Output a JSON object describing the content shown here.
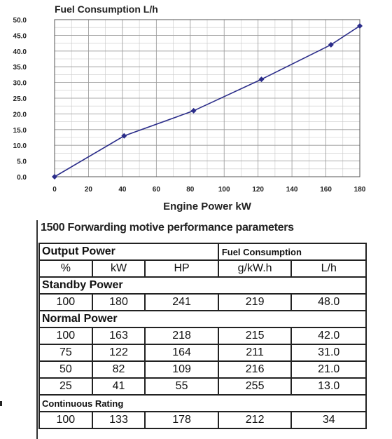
{
  "chart_data": {
    "type": "line",
    "title": "Fuel Consumption L/h",
    "xlabel": "Engine Power kW",
    "ylabel": "",
    "xlim": [
      0,
      180
    ],
    "ylim": [
      0,
      50
    ],
    "x_ticks": [
      0,
      20,
      40,
      60,
      80,
      100,
      120,
      140,
      160,
      180
    ],
    "x_tick_labels": [
      "0",
      "20",
      "40",
      "60",
      "80",
      "100",
      "120",
      "140",
      "160",
      "180"
    ],
    "y_ticks": [
      0,
      5,
      10,
      15,
      20,
      25,
      30,
      35,
      40,
      45,
      50
    ],
    "y_tick_labels": [
      "0.0",
      "5.0",
      "10.0",
      "15.0",
      "20.0",
      "25.0",
      "30.0",
      "35.0",
      "40.0",
      "45.0",
      "50.0"
    ],
    "grid": true,
    "line_color": "#2b2d8a",
    "series": [
      {
        "name": "",
        "x": [
          0,
          41,
          82,
          122,
          163,
          180
        ],
        "y": [
          0,
          13.0,
          21.0,
          31.0,
          42.0,
          48.0
        ]
      }
    ]
  },
  "table": {
    "title": "1500 Forwarding motive performance parameters",
    "output_power_label": "Output Power",
    "fuel_consumption_label": "Fuel Consumption",
    "units": [
      "%",
      "kW",
      "HP",
      "g/kW.h",
      "L/h"
    ],
    "standby_label": "Standby Power",
    "standby_rows": [
      [
        "100",
        "180",
        "241",
        "219",
        "48.0"
      ]
    ],
    "normal_label": "Normal Power",
    "normal_rows": [
      [
        "100",
        "163",
        "218",
        "215",
        "42.0"
      ],
      [
        "75",
        "122",
        "164",
        "211",
        "31.0"
      ],
      [
        "50",
        "82",
        "109",
        "216",
        "21.0"
      ],
      [
        "25",
        "41",
        "55",
        "255",
        "13.0"
      ]
    ],
    "continuous_label": "Continuous Rating",
    "continuous_rows": [
      [
        "100",
        "133",
        "178",
        "212",
        "34"
      ]
    ]
  }
}
